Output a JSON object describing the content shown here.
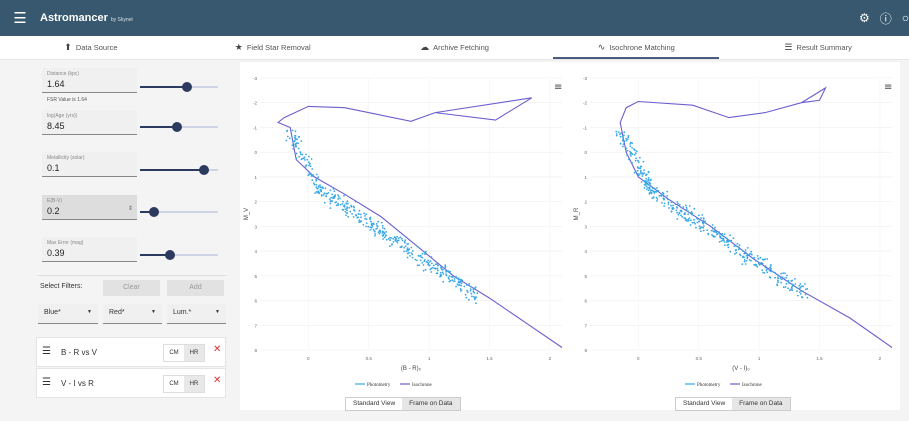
{
  "app": {
    "title": "Astromancer",
    "subtitle": "by Skynet"
  },
  "tabs": [
    {
      "label": "Data Source",
      "icon": "upload-icon"
    },
    {
      "label": "Field Star Removal",
      "icon": "star-icon"
    },
    {
      "label": "Archive Fetching",
      "icon": "cloud-icon"
    },
    {
      "label": "Isochrone Matching",
      "icon": "trend-icon"
    },
    {
      "label": "Result Summary",
      "icon": "list-icon"
    }
  ],
  "controls": {
    "distance": {
      "label": "Distance (kpc)",
      "value": "1.64",
      "note": "FSR Value is 1.64",
      "level": 0.6
    },
    "age": {
      "label": "log(Age (yrs))",
      "value": "8.45",
      "level": 0.48
    },
    "metallicity": {
      "label": "Metallicity (solar)",
      "value": "0.1",
      "level": 0.82
    },
    "ebv": {
      "label": "E(B-V)",
      "value": "0.2",
      "level": 0.18
    },
    "maxerror": {
      "label": "Max Error (mag)",
      "value": "0.39",
      "level": 0.38
    }
  },
  "filters": {
    "label": "Select Filters:",
    "clear": "Clear",
    "add": "Add",
    "selects": [
      "Blue*",
      "Red*",
      "Lum.*"
    ],
    "rows": [
      {
        "name": "B - R vs V",
        "cm": "CM",
        "hr": "HR"
      },
      {
        "name": "V - I vs R",
        "cm": "CM",
        "hr": "HR"
      }
    ]
  },
  "charts": [
    {
      "xlabel": "(B - R)₀",
      "ylabel": "M_V",
      "xticks": [
        "0",
        "0.5",
        "1",
        "1.5",
        "2"
      ],
      "yticks": [
        "-3",
        "-2",
        "-1",
        "0",
        "1",
        "2",
        "3",
        "4",
        "5",
        "6",
        "7",
        "8"
      ],
      "legend": [
        "Photometry",
        "Isochrone"
      ],
      "views": [
        "Standard View",
        "Frame on Data"
      ]
    },
    {
      "xlabel": "(V - I)₀",
      "ylabel": "M_R",
      "xticks": [
        "0",
        "0.5",
        "1",
        "1.5",
        "2"
      ],
      "yticks": [
        "-3",
        "-2",
        "-1",
        "0",
        "1",
        "2",
        "3",
        "4",
        "5",
        "6",
        "7",
        "8"
      ],
      "legend": [
        "Photometry",
        "Isochrone"
      ],
      "views": [
        "Standard View",
        "Frame on Data"
      ]
    }
  ],
  "colors": {
    "bar": "#37586e",
    "points": "#3aa8e6",
    "isochrone": "#6b5fcf"
  }
}
